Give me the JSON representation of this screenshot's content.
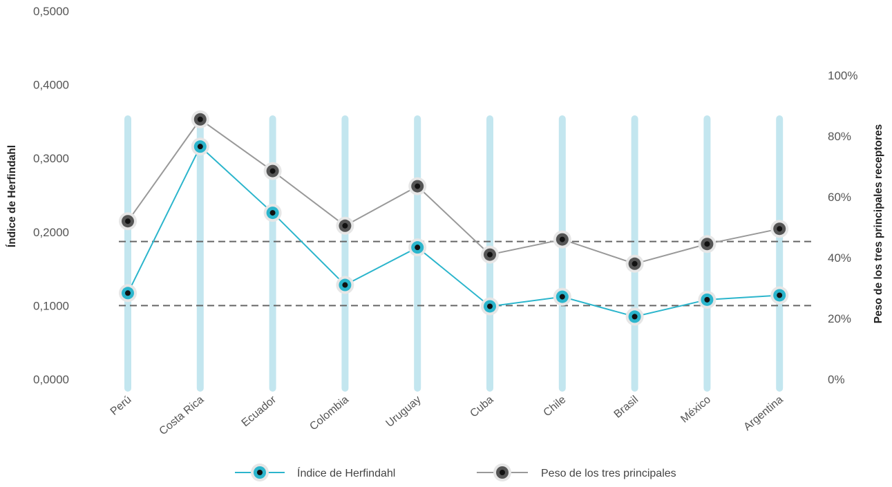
{
  "chart_data": {
    "type": "line",
    "categories": [
      "Perú",
      "Costa Rica",
      "Ecuador",
      "Colombia",
      "Uruguay",
      "Cuba",
      "Chile",
      "Brasil",
      "México",
      "Argentina"
    ],
    "series": [
      {
        "name": "Índice de Herfindahl",
        "axis": "left",
        "color": "#2bb5cc",
        "values": [
          0.117,
          0.316,
          0.226,
          0.128,
          0.179,
          0.099,
          0.112,
          0.085,
          0.108,
          0.114
        ]
      },
      {
        "name": "Peso de los tres principales",
        "axis": "right",
        "color": "#999999",
        "values": [
          0.52,
          0.855,
          0.685,
          0.505,
          0.635,
          0.41,
          0.46,
          0.38,
          0.445,
          0.495
        ]
      }
    ],
    "y_left": {
      "label": "Índice de Herfindahl",
      "lim": [
        0,
        0.5
      ],
      "ticks": [
        "0,0000",
        "0,1000",
        "0,2000",
        "0,3000",
        "0,4000",
        "0,5000"
      ]
    },
    "y_right": {
      "label": "Peso de los tres principales receptores",
      "lim": [
        0,
        1.2
      ],
      "ticks": [
        "0%",
        "20%",
        "40%",
        "60%",
        "80%",
        "100%"
      ]
    },
    "reference_lines_left_axis": [
      0.1,
      0.187
    ],
    "bar_color": "#c3e6ef",
    "reference_line_color": "#666666",
    "grid": false,
    "legend_position": "bottom"
  }
}
